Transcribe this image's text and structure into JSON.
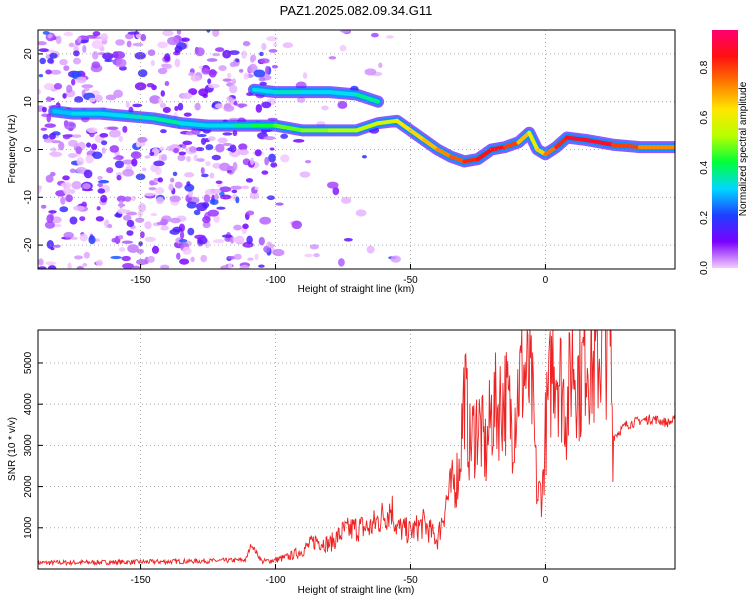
{
  "title": "PAZ1.2025.082.09.34.G11",
  "chart_data": [
    {
      "type": "heatmap",
      "xlabel": "Height of straight line (km)",
      "ylabel": "Frequency (Hz)",
      "xlim": [
        -188,
        48
      ],
      "ylim": [
        -25,
        25
      ],
      "xticks": [
        -150,
        -100,
        -50,
        0
      ],
      "yticks": [
        -20,
        -10,
        0,
        10,
        20
      ],
      "colorbar": {
        "label": "Normalized spectral amplitude",
        "range": [
          0,
          0.95
        ],
        "ticks": [
          0.0,
          0.2,
          0.4,
          0.6,
          0.8
        ],
        "tick_labels": [
          "0.0",
          "0.2",
          "0.4",
          "0.6",
          "0.8"
        ],
        "colormap": [
          "#f5ccff",
          "#7a00ff",
          "#1e40ff",
          "#00d8ff",
          "#00ff3a",
          "#b9ff00",
          "#ffe600",
          "#ff7a00",
          "#ff1010",
          "#ff0070"
        ]
      },
      "ridge": {
        "x": [
          -182,
          -175,
          -165,
          -155,
          -145,
          -135,
          -125,
          -115,
          -108,
          -100,
          -90,
          -80,
          -70,
          -62,
          -55,
          -50,
          -45,
          -40,
          -35,
          -30,
          -25,
          -20,
          -15,
          -10,
          -6,
          -3,
          0,
          4,
          8,
          15,
          25,
          35,
          48
        ],
        "y": [
          8,
          7.5,
          7.5,
          7,
          6.5,
          5.5,
          5,
          5,
          5,
          5,
          4,
          4,
          4,
          5.5,
          6,
          4,
          2,
          0,
          -1.5,
          -2.5,
          -2,
          0,
          0.5,
          1.5,
          3.5,
          0,
          -1,
          0.5,
          2.5,
          2,
          1,
          0.5,
          0.5
        ],
        "amp": [
          0.3,
          0.3,
          0.35,
          0.3,
          0.4,
          0.35,
          0.3,
          0.35,
          0.4,
          0.45,
          0.5,
          0.5,
          0.55,
          0.55,
          0.6,
          0.65,
          0.65,
          0.7,
          0.75,
          0.8,
          0.85,
          0.85,
          0.85,
          0.75,
          0.6,
          0.6,
          0.7,
          0.8,
          0.85,
          0.9,
          0.85,
          0.75,
          0.7
        ]
      },
      "upper_branch": {
        "x": [
          -108,
          -100,
          -90,
          -80,
          -70,
          -62
        ],
        "y": [
          12.5,
          12,
          12,
          12,
          11.5,
          10
        ],
        "amp": [
          0.3,
          0.35,
          0.35,
          0.3,
          0.35,
          0.4
        ]
      }
    },
    {
      "type": "line",
      "xlabel": "Height of straight line (km)",
      "ylabel": "SNR (10 * v/v)",
      "xlim": [
        -188,
        48
      ],
      "ylim": [
        0,
        5800
      ],
      "xticks": [
        -150,
        -100,
        -50,
        0
      ],
      "yticks": [
        1000,
        2000,
        3000,
        4000,
        5000
      ],
      "series": [
        {
          "color": "#ee2222",
          "x": [
            -188,
            -150,
            -120,
            -111,
            -109,
            -105,
            -100,
            -95,
            -90,
            -85,
            -80,
            -75,
            -70,
            -65,
            -60,
            -57,
            -55,
            -50,
            -45,
            -40,
            -37,
            -35,
            -32,
            -30,
            -28,
            -25,
            -22,
            -20,
            -17,
            -15,
            -12,
            -10,
            -8,
            -5,
            -3,
            -1,
            0,
            3,
            5,
            8,
            10,
            13,
            15,
            18,
            20,
            23,
            24,
            25,
            30,
            35,
            40,
            45,
            48
          ],
          "y": [
            150,
            170,
            200,
            220,
            600,
            180,
            220,
            300,
            450,
            700,
            600,
            900,
            1000,
            1000,
            1300,
            1500,
            1000,
            900,
            1100,
            700,
            1600,
            1900,
            2400,
            4400,
            3000,
            3600,
            2800,
            3800,
            4000,
            4200,
            3500,
            4500,
            4800,
            4300,
            1700,
            2000,
            3300,
            5300,
            4800,
            3800,
            5200,
            4500,
            5500,
            4800,
            5300,
            5600,
            5800,
            3200,
            3500,
            3600,
            3650,
            3550,
            3600
          ]
        }
      ]
    }
  ]
}
